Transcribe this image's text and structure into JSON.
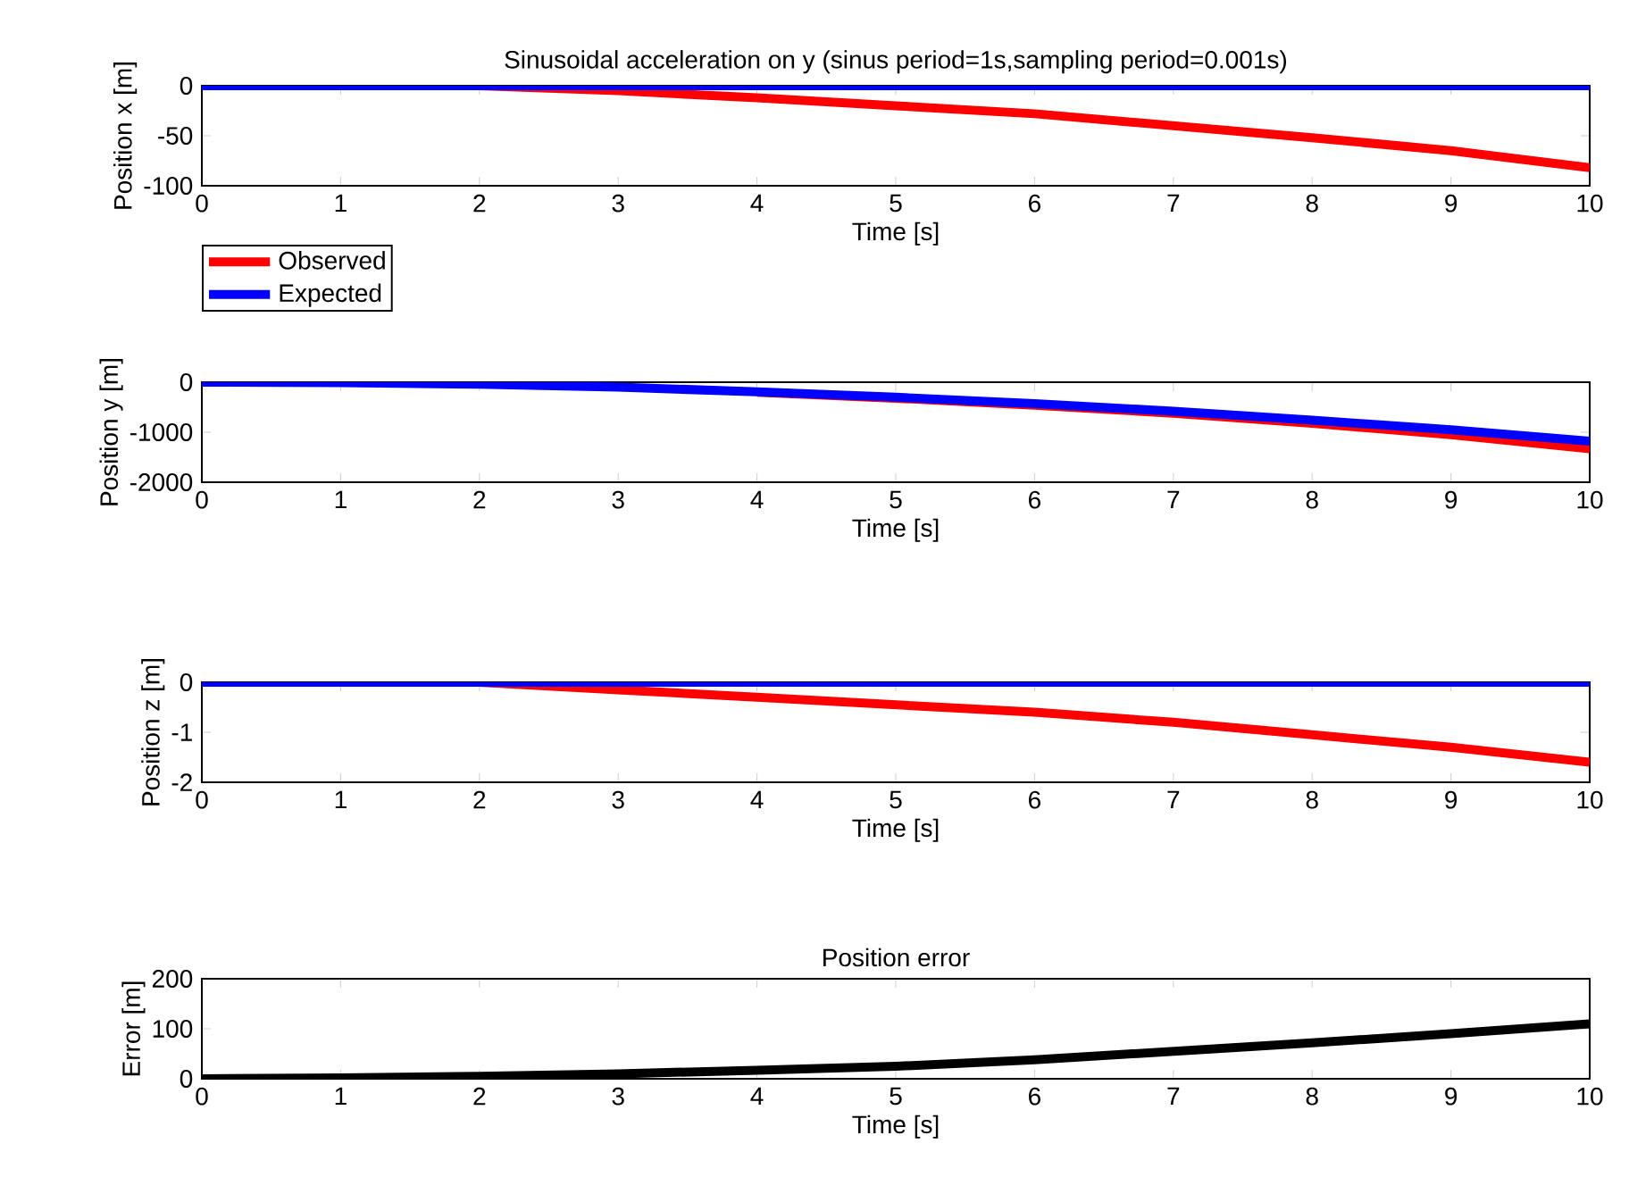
{
  "chart_data": [
    {
      "type": "line",
      "title": "Sinusoidal acceleration on y (sinus period=1s,sampling period=0.001s)",
      "xlabel": "Time [s]",
      "ylabel": "Position x [m]",
      "x": [
        0,
        1,
        2,
        3,
        4,
        5,
        6,
        7,
        8,
        9,
        10
      ],
      "xlim": [
        0,
        10
      ],
      "xticks": [
        0,
        1,
        2,
        3,
        4,
        5,
        6,
        7,
        8,
        9,
        10
      ],
      "ylim": [
        -100,
        0
      ],
      "yticks": [
        -100,
        -50,
        0
      ],
      "legend": "bottom left",
      "series": [
        {
          "name": "Observed",
          "color": "#ff0000",
          "values": [
            0,
            0,
            0,
            -5,
            -12,
            -20,
            -28,
            -40,
            -52,
            -65,
            -82
          ]
        },
        {
          "name": "Expected",
          "color": "#0000ff",
          "values": [
            0,
            0,
            0,
            0,
            0,
            0,
            0,
            0,
            0,
            0,
            0
          ]
        }
      ]
    },
    {
      "type": "line",
      "xlabel": "Time [s]",
      "ylabel": "Position y [m]",
      "x": [
        0,
        1,
        2,
        3,
        4,
        5,
        6,
        7,
        8,
        9,
        10
      ],
      "xlim": [
        0,
        10
      ],
      "xticks": [
        0,
        1,
        2,
        3,
        4,
        5,
        6,
        7,
        8,
        9,
        10
      ],
      "ylim": [
        -2000,
        0
      ],
      "yticks": [
        -2000,
        -1000,
        0
      ],
      "series": [
        {
          "color": "#ff0000",
          "values": [
            null,
            null,
            null,
            null,
            -200,
            -320,
            -460,
            -620,
            -820,
            -1050,
            -1330
          ]
        },
        {
          "color": "#0000ff",
          "values": [
            0,
            -10,
            -40,
            -100,
            -190,
            -300,
            -430,
            -580,
            -760,
            -950,
            -1180
          ]
        }
      ]
    },
    {
      "type": "line",
      "xlabel": "Time [s]",
      "ylabel": "Position z [m]",
      "x": [
        0,
        1,
        2,
        3,
        4,
        5,
        6,
        7,
        8,
        9,
        10
      ],
      "xlim": [
        0,
        10
      ],
      "xticks": [
        0,
        1,
        2,
        3,
        4,
        5,
        6,
        7,
        8,
        9,
        10
      ],
      "ylim": [
        -2,
        0
      ],
      "yticks": [
        -2,
        -1,
        0
      ],
      "series": [
        {
          "color": "#ff0000",
          "values": [
            0,
            0,
            0,
            -0.15,
            -0.3,
            -0.45,
            -0.6,
            -0.8,
            -1.05,
            -1.3,
            -1.6
          ]
        },
        {
          "color": "#0000ff",
          "values": [
            0,
            0,
            0,
            0,
            0,
            0,
            0,
            0,
            0,
            0,
            0
          ]
        }
      ]
    },
    {
      "type": "line",
      "title": "Position error",
      "xlabel": "Time [s]",
      "ylabel": "Error [m]",
      "x": [
        0,
        1,
        2,
        3,
        4,
        5,
        6,
        7,
        8,
        9,
        10
      ],
      "xlim": [
        0,
        10
      ],
      "xticks": [
        0,
        1,
        2,
        3,
        4,
        5,
        6,
        7,
        8,
        9,
        10
      ],
      "ylim": [
        0,
        200
      ],
      "yticks": [
        0,
        100,
        200
      ],
      "series": [
        {
          "color": "#000000",
          "values": [
            0,
            2,
            5,
            10,
            17,
            25,
            38,
            55,
            72,
            90,
            110
          ]
        }
      ]
    }
  ]
}
